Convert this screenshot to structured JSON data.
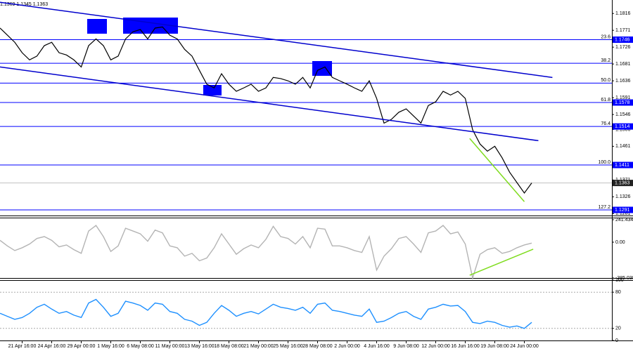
{
  "chart_data": [
    {
      "type": "line",
      "header": "1.1369 1.1345 1.1363",
      "categories": [
        null,
        null,
        null,
        "21 Apr 16:00",
        null,
        null,
        null,
        "24 Apr 16:00",
        null,
        null,
        null,
        "29 Apr 00:00",
        null,
        null,
        null,
        "1 May 16:00",
        null,
        null,
        null,
        "6 May 08:00",
        null,
        null,
        null,
        "11 May 00:00",
        null,
        null,
        null,
        "13 May 16:00",
        null,
        null,
        null,
        "18 May 08:00",
        null,
        null,
        null,
        "21 May 00:00",
        null,
        null,
        null,
        "25 May 16:00",
        null,
        null,
        null,
        "28 May 08:00",
        null,
        null,
        null,
        "2 Jun 00:00",
        null,
        null,
        null,
        "4 Jun 16:00",
        null,
        null,
        null,
        "9 Jun 08:00",
        null,
        null,
        null,
        "12 Jun 00:00",
        null,
        null,
        null,
        "16 Jun 16:00",
        null,
        null,
        null,
        "19 Jun 08:00",
        null,
        null,
        null,
        "24 Jun 00:00",
        null
      ],
      "series": [
        {
          "color": "#000000",
          "values": [
            1.1777,
            1.1758,
            1.1739,
            1.1711,
            1.1692,
            1.1702,
            1.173,
            1.1739,
            1.1711,
            1.1705,
            1.1692,
            1.1673,
            1.173,
            1.1748,
            1.173,
            1.1692,
            1.1702,
            1.1748,
            1.1767,
            1.1773,
            1.1748,
            1.1777,
            1.178,
            1.1758,
            1.1748,
            1.172,
            1.1702,
            1.1664,
            1.1627,
            1.1617,
            1.1655,
            1.1627,
            1.1608,
            1.1617,
            1.1627,
            1.1608,
            1.1617,
            1.1645,
            1.1642,
            1.1636,
            1.1627,
            1.1645,
            1.1617,
            1.1664,
            1.1673,
            1.1645,
            1.1636,
            1.1627,
            1.1617,
            1.1608,
            1.1636,
            1.1589,
            1.1523,
            1.1533,
            1.1552,
            1.1561,
            1.1542,
            1.1523,
            1.157,
            1.158,
            1.1608,
            1.1598,
            1.1608,
            1.1589,
            1.1505,
            1.1467,
            1.1448,
            1.1461,
            1.143,
            1.1392,
            1.1364,
            1.1336,
            1.1363
          ]
        }
      ],
      "ylim": [
        1.1276,
        1.1852
      ],
      "yticks": [
        1.1816,
        1.1771,
        1.1726,
        1.1681,
        1.1636,
        1.1591,
        1.1546,
        1.1506,
        1.1461,
        1.1371,
        1.1326,
        1.1281
      ],
      "levels": [
        {
          "name": "23.6",
          "value": 1.1746,
          "tag": true
        },
        {
          "name": "38.2",
          "value": 1.1683,
          "tag": false
        },
        {
          "name": "50.0",
          "value": 1.163,
          "tag": false
        },
        {
          "name": "61.8",
          "value": 1.1578,
          "tag": true
        },
        {
          "name": "76.4",
          "value": 1.1514,
          "tag": true
        },
        {
          "name": "100.0",
          "value": 1.1411,
          "tag": true
        },
        {
          "name": "127.2",
          "value": 1.1291,
          "tag": true
        }
      ],
      "level_color": "#0000ff",
      "last": 1.1363,
      "lines": [
        {
          "color": "#0000cd",
          "x": [
            0,
            74.8
          ],
          "y": [
            1.1846,
            1.1645
          ]
        },
        {
          "color": "#0000cd",
          "x": [
            0,
            72.9
          ],
          "y": [
            1.1673,
            1.1476
          ]
        },
        {
          "color": "#7fdc1e",
          "x": [
            63.6,
            71
          ],
          "y": [
            1.1482,
            1.1313
          ]
        }
      ]
    },
    {
      "type": "line",
      "series": [
        {
          "color": "#b4b4b4",
          "values": [
            20,
            -40,
            -90,
            -60,
            -20,
            40,
            60,
            20,
            -50,
            -30,
            -80,
            -120,
            120,
            180,
            60,
            -100,
            -40,
            150,
            120,
            90,
            10,
            130,
            100,
            -40,
            -60,
            -150,
            -120,
            -200,
            -170,
            -60,
            90,
            -20,
            -130,
            -70,
            -30,
            -60,
            30,
            170,
            60,
            40,
            -20,
            60,
            -60,
            150,
            140,
            -40,
            -40,
            -60,
            -90,
            -110,
            60,
            -300,
            -150,
            -70,
            40,
            60,
            -20,
            -110,
            100,
            120,
            180,
            90,
            110,
            -20,
            -385,
            -130,
            -80,
            -60,
            -120,
            -100,
            -60,
            -30,
            -10
          ]
        }
      ],
      "ylim": [
        -385,
        264
      ],
      "yticks": [
        241.4348,
        {
          "value": 0,
          "label": "0.00"
        },
        -385.0391
      ],
      "lines": [
        {
          "color": "#7fdc1e",
          "x": [
            63.6,
            72.2
          ],
          "y": [
            -355,
            -75
          ]
        }
      ]
    },
    {
      "type": "line",
      "series": [
        {
          "color": "#1e90ff",
          "values": [
            45,
            40,
            35,
            38,
            45,
            55,
            60,
            52,
            45,
            48,
            42,
            38,
            62,
            68,
            55,
            40,
            45,
            65,
            62,
            58,
            50,
            62,
            60,
            48,
            45,
            35,
            32,
            25,
            30,
            45,
            58,
            50,
            40,
            45,
            48,
            44,
            52,
            60,
            55,
            53,
            50,
            55,
            45,
            60,
            62,
            50,
            48,
            45,
            42,
            40,
            52,
            30,
            32,
            38,
            45,
            48,
            40,
            35,
            52,
            55,
            60,
            57,
            58,
            48,
            30,
            28,
            32,
            30,
            25,
            22,
            24,
            20,
            30
          ]
        }
      ],
      "ylim": [
        0,
        100
      ],
      "yticks": [
        100,
        80,
        20,
        0
      ],
      "dashed_ticks": [
        80,
        20
      ]
    }
  ]
}
